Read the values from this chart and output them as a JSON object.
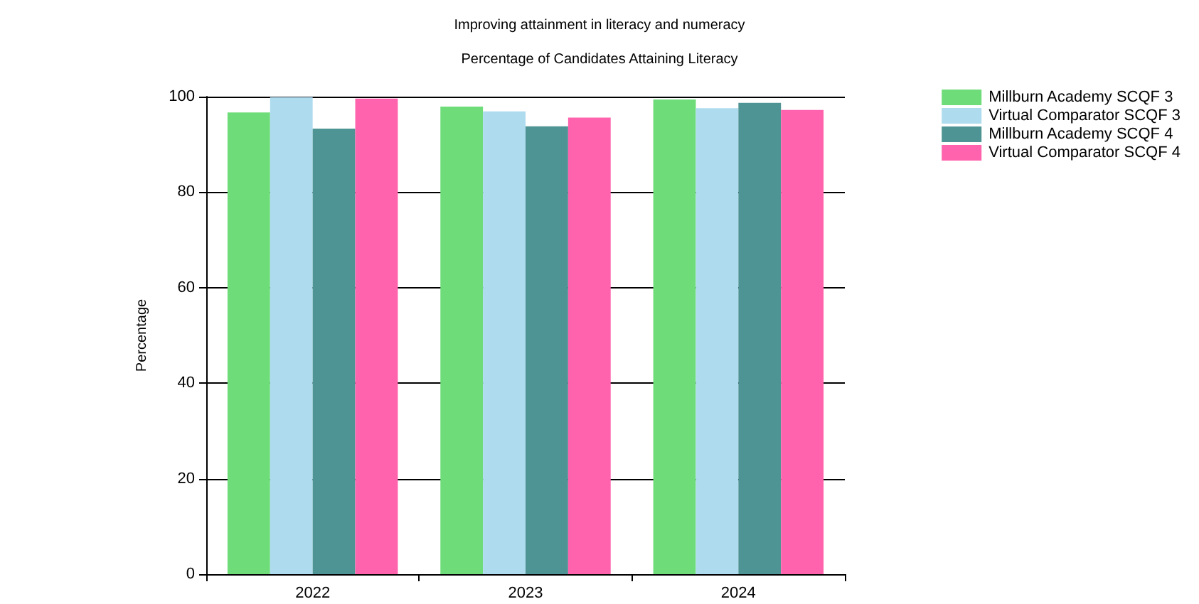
{
  "chart_data": {
    "type": "bar",
    "title": "Improving attainment in literacy and numeracy",
    "subtitle": "Percentage of Candidates Attaining Literacy",
    "ylabel": "Percentage",
    "categories": [
      "2022",
      "2023",
      "2024"
    ],
    "series": [
      {
        "name": "Millburn Academy SCQF 3",
        "color": "#6fdc7a",
        "values": [
          96.7,
          97.9,
          99.4
        ]
      },
      {
        "name": "Virtual Comparator SCQF 3",
        "color": "#aedcee",
        "values": [
          99.9,
          96.9,
          97.6
        ]
      },
      {
        "name": "Millburn Academy SCQF 4",
        "color": "#4f9494",
        "values": [
          93.3,
          93.8,
          98.7
        ]
      },
      {
        "name": "Virtual Comparator SCQF 4",
        "color": "#ff63ad",
        "values": [
          99.6,
          95.6,
          97.2
        ]
      }
    ],
    "ylim": [
      0,
      100
    ],
    "yticks": [
      0,
      20,
      40,
      60,
      80,
      100
    ],
    "grid": "y",
    "legend": "top right"
  }
}
